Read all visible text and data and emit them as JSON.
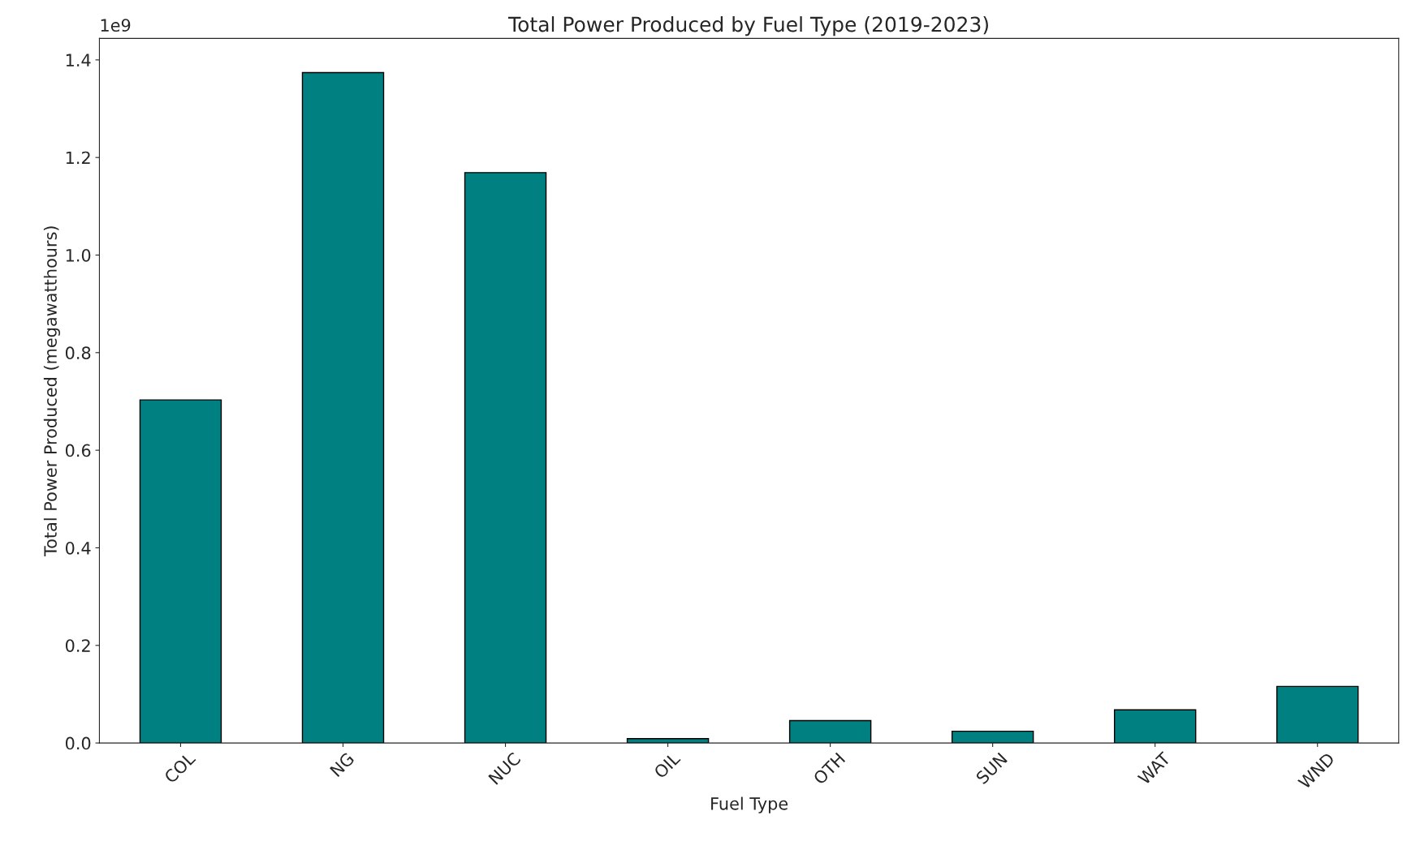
{
  "chart_data": {
    "type": "bar",
    "title": "Total Power Produced by Fuel Type (2019-2023)",
    "xlabel": "Fuel Type",
    "ylabel": "Total Power Produced (megawatthours)",
    "categories": [
      "COL",
      "NG",
      "NUC",
      "OIL",
      "OTH",
      "SUN",
      "WAT",
      "WND"
    ],
    "values": [
      0.703,
      1.374,
      1.169,
      0.009,
      0.046,
      0.024,
      0.068,
      0.116
    ],
    "color": "#008080",
    "ylim": [
      0,
      1.444
    ],
    "yticks": [
      {
        "value": 0,
        "label": "0.0"
      },
      0.2,
      0.4,
      0.6,
      0.8,
      {
        "value": 1,
        "label": "1.0"
      },
      1.2,
      1.4
    ],
    "annotations": [
      "1e9"
    ],
    "grid": false,
    "legend": false
  }
}
